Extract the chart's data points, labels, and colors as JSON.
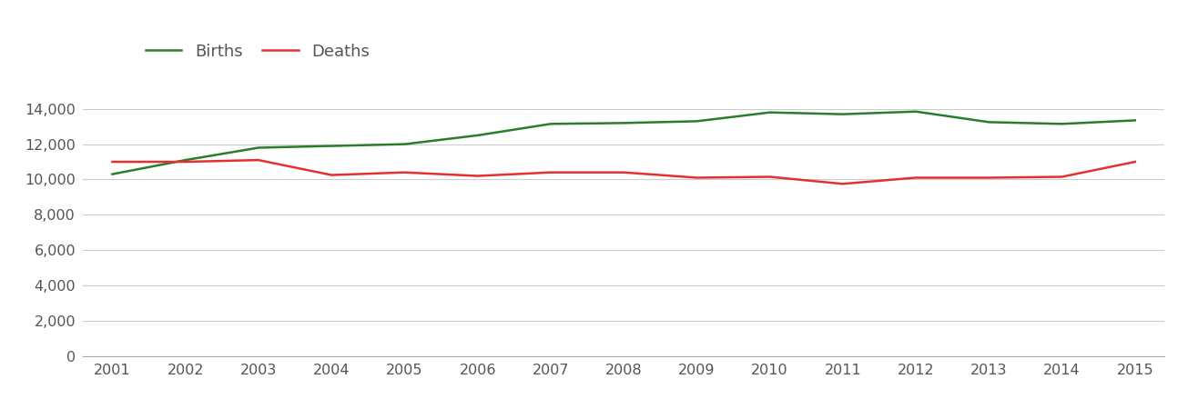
{
  "years": [
    2001,
    2002,
    2003,
    2004,
    2005,
    2006,
    2007,
    2008,
    2009,
    2010,
    2011,
    2012,
    2013,
    2014,
    2015
  ],
  "births": [
    10300,
    11100,
    11800,
    11900,
    12000,
    12500,
    13150,
    13200,
    13300,
    13800,
    13700,
    13850,
    13250,
    13150,
    13350
  ],
  "deaths": [
    11000,
    11000,
    11100,
    10250,
    10400,
    10200,
    10400,
    10400,
    10100,
    10150,
    9750,
    10100,
    10100,
    10150,
    11000
  ],
  "births_color": "#2a7d2a",
  "deaths_color": "#e53030",
  "line_width": 1.8,
  "legend_labels": [
    "Births",
    "Deaths"
  ],
  "ylim": [
    0,
    16000
  ],
  "yticks": [
    0,
    2000,
    4000,
    6000,
    8000,
    10000,
    12000,
    14000
  ],
  "background_color": "#ffffff",
  "grid_color": "#cccccc",
  "tick_label_color": "#555555",
  "tick_fontsize": 11.5
}
